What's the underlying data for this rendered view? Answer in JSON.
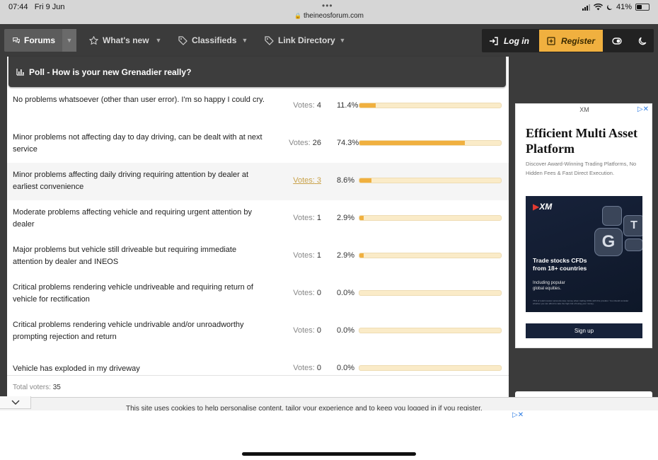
{
  "status_bar": {
    "time": "07:44",
    "date": "Fri 9 Jun",
    "url": "theineosforum.com",
    "battery": "41%",
    "battery_level": 0.41
  },
  "nav": {
    "items": [
      {
        "label": "Forums",
        "icon": "chat-bubbles-icon",
        "active": true
      },
      {
        "label": "What's new",
        "icon": "star-icon",
        "active": false
      },
      {
        "label": "Classifieds",
        "icon": "tag-icon",
        "active": false
      },
      {
        "label": "Link Directory",
        "icon": "tag-icon",
        "active": false
      }
    ],
    "login_label": "Log in",
    "register_label": "Register"
  },
  "poll": {
    "title": "Poll - How is your new Grenadier really?",
    "votes_label": "Votes:",
    "responses": [
      {
        "text": "No problems whatsoever (other than user error). I'm so happy I could cry.",
        "votes": "4",
        "percent": "11.4%",
        "fraction": 0.114
      },
      {
        "text": "Minor problems not affecting day to day driving, can be dealt with at next service",
        "votes": "26",
        "percent": "74.3%",
        "fraction": 0.743
      },
      {
        "text": "Minor problems affecting daily driving requiring attention by dealer at earliest convenience",
        "votes": "3",
        "percent": "8.6%",
        "fraction": 0.086,
        "highlighted": true
      },
      {
        "text": "Moderate problems affecting vehicle and requiring urgent attention by dealer",
        "votes": "1",
        "percent": "2.9%",
        "fraction": 0.029
      },
      {
        "text": "Major problems but vehicle still driveable but requiring immediate attention by dealer and INEOS",
        "votes": "1",
        "percent": "2.9%",
        "fraction": 0.029
      },
      {
        "text": "Critical problems rendering vehicle undriveable and requiring return of vehicle for rectification",
        "votes": "0",
        "percent": "0.0%",
        "fraction": 0
      },
      {
        "text": "Critical problems rendering vehicle undrivable and/or unroadworthy prompting rejection and return",
        "votes": "0",
        "percent": "0.0%",
        "fraction": 0
      },
      {
        "text": "Vehicle has exploded in my driveway",
        "votes": "0",
        "percent": "0.0%",
        "fraction": 0
      }
    ],
    "total_label": "Total voters:",
    "total_value": "35"
  },
  "ad": {
    "brand": "XM",
    "title": "Efficient Multi Asset Platform",
    "description": "Discover Award-Winning Trading Platforms, No Hidden Fees & Fast Direct Execution.",
    "image_logo": "XM",
    "image_headline_1": "Trade stocks CFDs",
    "image_headline_2": "from 18+ countries",
    "image_sub_1": "Including popular",
    "image_sub_2": "global equities.",
    "image_fine_print": "75% of retail investor accounts lose money when trading CFDs with this provider. You should consider whether you can afford to take the high risk of losing your money.",
    "cta": "Sign up"
  },
  "cookie": {
    "text": "This site uses cookies to help personalise content, tailor your experience and to keep you logged in if you register."
  }
}
